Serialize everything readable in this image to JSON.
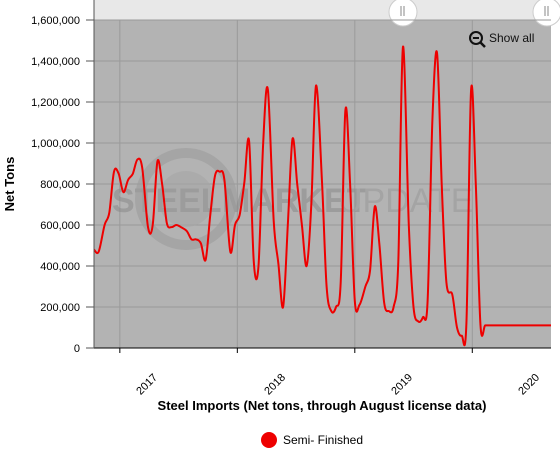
{
  "colors": {
    "plot_background": "#b3b3b3",
    "series": "#ee0000",
    "grid": "#9a9a9a",
    "navigator_band": "#e8e8e8"
  },
  "show_all_label": "Show all",
  "show_all_icon": "zoom-out-icon",
  "watermark": {
    "word1": "STEEL",
    "word2": "MARKET",
    "word3": "UPDATE"
  },
  "chart_data": {
    "type": "line",
    "title": "",
    "xlabel": "Steel Imports (Net tons, through August license data)",
    "ylabel": "Net Tons",
    "ylim": [
      0,
      1600000
    ],
    "yticks": [
      0,
      200000,
      400000,
      600000,
      800000,
      1000000,
      1200000,
      1400000,
      1600000
    ],
    "ytick_labels": [
      "0",
      "200,000",
      "400,000",
      "600,000",
      "800,000",
      "1,000,000",
      "1,200,000",
      "1,400,000",
      "1,600,000"
    ],
    "xlim": [
      2016.78,
      2020.67
    ],
    "year_lines": [
      2017,
      2018,
      2019,
      2020
    ],
    "x_tick_labels": [
      {
        "label": "2017",
        "x": 2017.0
      },
      {
        "label": "2018",
        "x": 2018.0
      },
      {
        "label": "2019",
        "x": 2019.0
      },
      {
        "label": "2020",
        "x": 2020.0
      }
    ],
    "grid": true,
    "legend_position": "bottom-center",
    "series": [
      {
        "name": "Semi- Finished",
        "color": "#ee0000",
        "x": [
          2016.78,
          2016.82,
          2016.87,
          2016.91,
          2016.95,
          2016.99,
          2017.03,
          2017.07,
          2017.11,
          2017.15,
          2017.19,
          2017.24,
          2017.28,
          2017.32,
          2017.36,
          2017.4,
          2017.44,
          2017.48,
          2017.52,
          2017.57,
          2017.61,
          2017.65,
          2017.69,
          2017.73,
          2017.77,
          2017.81,
          2017.85,
          2017.89,
          2017.94,
          2017.98,
          2018.02,
          2018.06,
          2018.1,
          2018.14,
          2018.18,
          2018.22,
          2018.26,
          2018.31,
          2018.35,
          2018.39,
          2018.43,
          2018.47,
          2018.51,
          2018.55,
          2018.59,
          2018.63,
          2018.67,
          2018.72,
          2018.76,
          2018.8,
          2018.84,
          2018.88,
          2018.92,
          2018.96,
          2019.0,
          2019.04,
          2019.09,
          2019.13,
          2019.17,
          2019.21,
          2019.25,
          2019.29,
          2019.33,
          2019.37,
          2019.41,
          2019.46,
          2019.5,
          2019.54,
          2019.58,
          2019.62,
          2019.66,
          2019.7,
          2019.74,
          2019.78,
          2019.83,
          2019.87,
          2019.91,
          2019.95,
          2019.99,
          2020.03,
          2020.07,
          2020.11,
          2020.15,
          2020.2,
          2020.24,
          2020.28,
          2020.32,
          2020.36,
          2020.4,
          2020.44,
          2020.48,
          2020.52,
          2020.57,
          2020.61,
          2020.65,
          2020.67
        ],
        "values": [
          480000,
          470000,
          600000,
          660000,
          860000,
          850000,
          760000,
          820000,
          850000,
          920000,
          880000,
          590000,
          600000,
          910000,
          800000,
          610000,
          590000,
          600000,
          590000,
          570000,
          530000,
          530000,
          510000,
          430000,
          650000,
          840000,
          860000,
          820000,
          470000,
          600000,
          650000,
          810000,
          1010000,
          420000,
          400000,
          1000000,
          1260000,
          620000,
          410000,
          200000,
          600000,
          1020000,
          800000,
          600000,
          400000,
          700000,
          1280000,
          820000,
          300000,
          180000,
          200000,
          320000,
          1160000,
          800000,
          230000,
          210000,
          300000,
          380000,
          690000,
          500000,
          220000,
          180000,
          200000,
          420000,
          1470000,
          600000,
          200000,
          130000,
          150000,
          230000,
          1100000,
          1440000,
          800000,
          320000,
          260000,
          100000,
          60000,
          120000,
          1260000,
          800000,
          110000,
          110000,
          110000,
          110000,
          110000,
          110000,
          110000,
          110000,
          110000,
          110000,
          110000,
          110000,
          110000,
          110000,
          110000,
          110000
        ]
      }
    ]
  }
}
